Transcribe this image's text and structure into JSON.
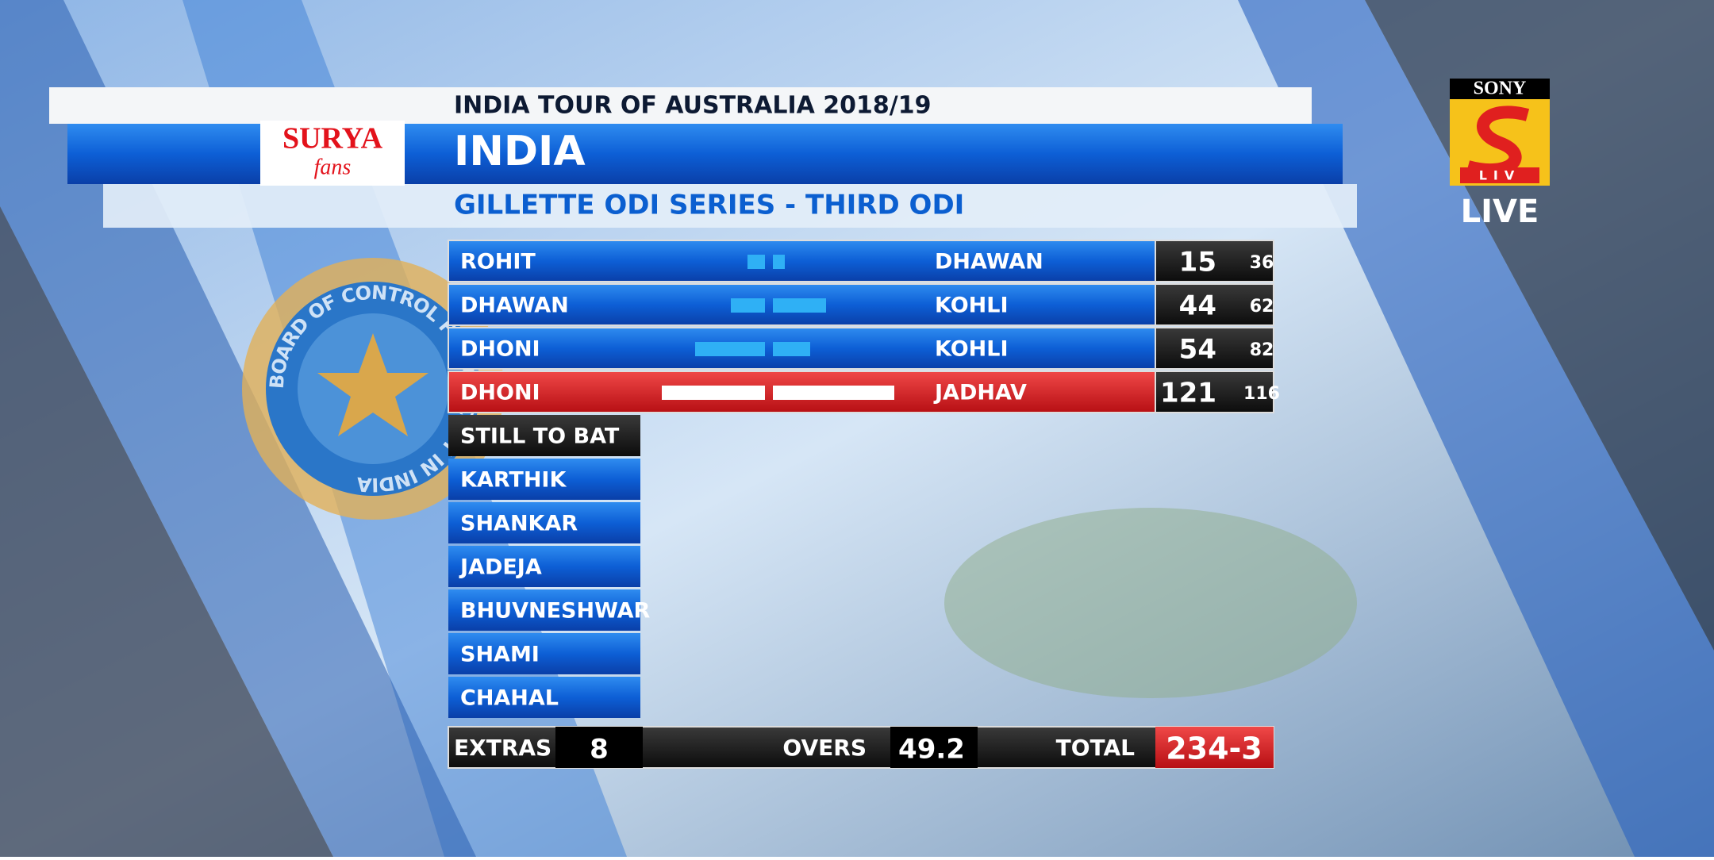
{
  "header": {
    "tour": "INDIA TOUR OF AUSTRALIA 2018/19",
    "team": "INDIA",
    "series": "GILLETTE ODI SERIES - THIRD ODI"
  },
  "sponsor": {
    "brand": "SURYA",
    "tagline": "fans"
  },
  "emblem": {
    "text": "BOARD OF CONTROL FOR CRICKET IN INDIA"
  },
  "channel": {
    "brand": "SONY",
    "sub": "LIV",
    "status": "LIVE"
  },
  "partnerships": {
    "rows": [
      [
        "ROHIT",
        "DHAWAN",
        15,
        36
      ],
      [
        "DHAWAN",
        "KOHLI",
        44,
        62
      ],
      [
        "DHONI",
        "KOHLI",
        54,
        82
      ],
      [
        "DHONI",
        "JADHAV",
        121,
        116
      ]
    ]
  },
  "still_to_bat": {
    "title": "STILL TO BAT",
    "players": [
      "KARTHIK",
      "SHANKAR",
      "JADEJA",
      "BHUVNESHWAR",
      "SHAMI",
      "CHAHAL"
    ]
  },
  "footer": {
    "extras_label": "EXTRAS",
    "extras": 8,
    "overs_label": "OVERS",
    "overs": 49.2,
    "total_label": "TOTAL",
    "total": "234-3"
  }
}
